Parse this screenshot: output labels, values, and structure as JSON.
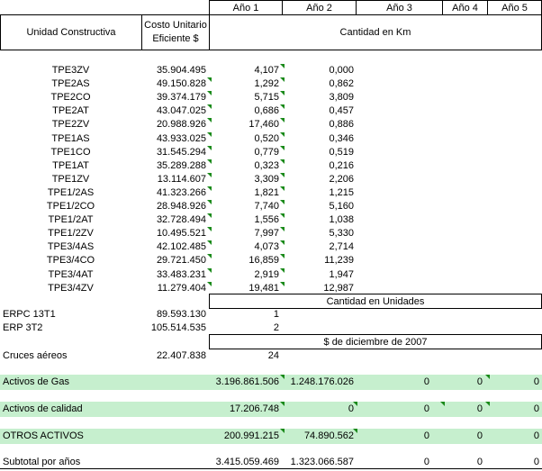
{
  "header": {
    "years": [
      "Año 1",
      "Año 2",
      "Año 3",
      "Año 4",
      "Año 5"
    ],
    "col_unit": "Unidad Constructiva",
    "col_cost": "Costo Unitario Eficiente $",
    "qty_km": "Cantidad en Km",
    "qty_units": "Cantidad en Unidades",
    "currency_note": "$ de diciembre de 2007"
  },
  "km_rows": [
    {
      "unit": "TPE3ZV",
      "cost": "35.904.495",
      "y1": "4,107",
      "y2": "0,000",
      "flag_cost": false
    },
    {
      "unit": "TPE2AS",
      "cost": "49.150.828",
      "y1": "1,292",
      "y2": "0,862",
      "flag_cost": true
    },
    {
      "unit": "TPE2CO",
      "cost": "39.374.179",
      "y1": "5,715",
      "y2": "3,809",
      "flag_cost": true
    },
    {
      "unit": "TPE2AT",
      "cost": "43.047.025",
      "y1": "0,686",
      "y2": "0,457",
      "flag_cost": true
    },
    {
      "unit": "TPE2ZV",
      "cost": "20.988.926",
      "y1": "17,460",
      "y2": "0,886",
      "flag_cost": true
    },
    {
      "unit": "TPE1AS",
      "cost": "43.933.025",
      "y1": "0,520",
      "y2": "0,346",
      "flag_cost": true
    },
    {
      "unit": "TPE1CO",
      "cost": "31.545.294",
      "y1": "0,779",
      "y2": "0,519",
      "flag_cost": true
    },
    {
      "unit": "TPE1AT",
      "cost": "35.289.288",
      "y1": "0,323",
      "y2": "0,216",
      "flag_cost": true
    },
    {
      "unit": "TPE1ZV",
      "cost": "13.114.607",
      "y1": "3,309",
      "y2": "2,206",
      "flag_cost": true
    },
    {
      "unit": "TPE1/2AS",
      "cost": "41.323.266",
      "y1": "1,821",
      "y2": "1,215",
      "flag_cost": true
    },
    {
      "unit": "TPE1/2CO",
      "cost": "28.948.926",
      "y1": "7,740",
      "y2": "5,160",
      "flag_cost": true
    },
    {
      "unit": "TPE1/2AT",
      "cost": "32.728.494",
      "y1": "1,556",
      "y2": "1,038",
      "flag_cost": true
    },
    {
      "unit": "TPE1/2ZV",
      "cost": "10.495.521",
      "y1": "7,997",
      "y2": "5,330",
      "flag_cost": true
    },
    {
      "unit": "TPE3/4AS",
      "cost": "42.102.485",
      "y1": "4,073",
      "y2": "2,714",
      "flag_cost": true
    },
    {
      "unit": "TPE3/4CO",
      "cost": "29.721.450",
      "y1": "16,859",
      "y2": "11,239",
      "flag_cost": true
    },
    {
      "unit": "TPE3/4AT",
      "cost": "33.483.231",
      "y1": "2,919",
      "y2": "1,947",
      "flag_cost": true
    },
    {
      "unit": "TPE3/4ZV",
      "cost": "11.279.404",
      "y1": "19,481",
      "y2": "12,987",
      "flag_cost": true
    }
  ],
  "unit_rows": [
    {
      "unit": "ERPC 13T1",
      "cost": "89.593.130",
      "qty": "1"
    },
    {
      "unit": "ERP 3T2",
      "cost": "105.514.535",
      "qty": "2"
    }
  ],
  "cruces": {
    "unit": "Cruces aéreos",
    "cost": "22.407.838",
    "qty": "24"
  },
  "totals": [
    {
      "label": "Activos de Gas",
      "vals": [
        "3.196.861.506",
        "1.248.176.026",
        "0",
        "0",
        "0"
      ],
      "green": true
    },
    {
      "label": "Activos de calidad",
      "vals": [
        "17.206.748",
        "0",
        "0",
        "0",
        "0"
      ],
      "green": true
    },
    {
      "label": "OTROS ACTIVOS",
      "vals": [
        "200.991.215",
        "74.890.562",
        "0",
        "0",
        "0"
      ],
      "green": true
    },
    {
      "label": "Subtotal por años",
      "vals": [
        "3.415.059.469",
        "1.323.066.587",
        "0",
        "0",
        "0"
      ],
      "green": false
    }
  ],
  "colors": {
    "band": "#c6efce",
    "marker": "#1a8a1a"
  }
}
